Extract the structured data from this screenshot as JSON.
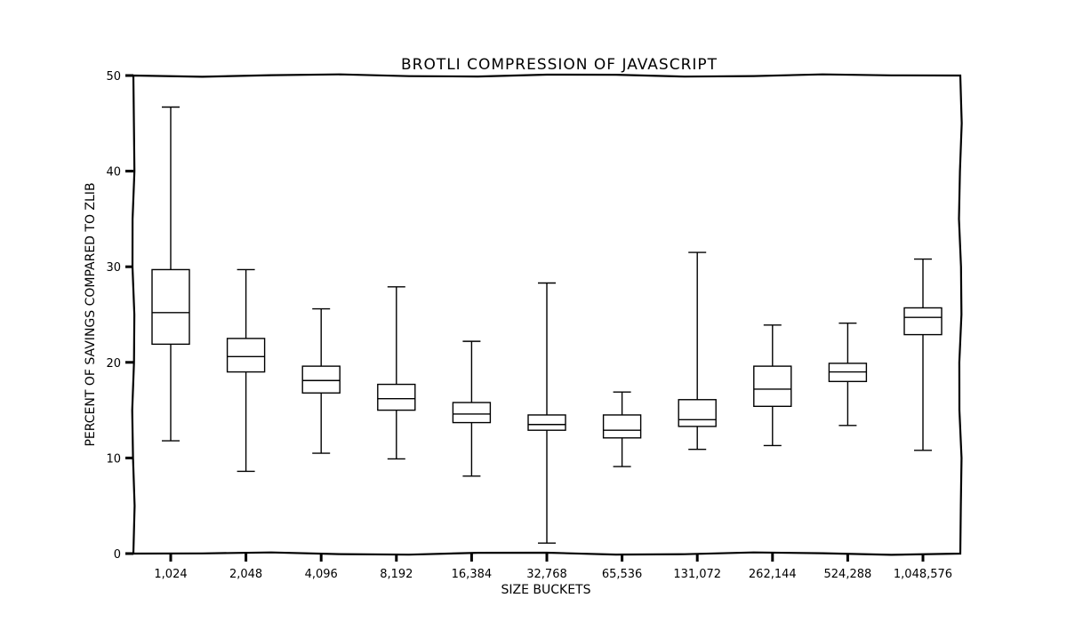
{
  "chart_data": {
    "type": "box",
    "title": "BROTLI COMPRESSION OF JAVASCRIPT",
    "xlabel": "SIZE BUCKETS",
    "ylabel": "PERCENT OF SAVINGS COMPARED TO ZLIB",
    "ylim": [
      0,
      50
    ],
    "yticks": [
      0,
      10,
      20,
      30,
      40,
      50
    ],
    "grid": false,
    "categories": [
      "1,024",
      "2,048",
      "4,096",
      "8,192",
      "16,384",
      "32,768",
      "65,536",
      "131,072",
      "262,144",
      "524,288",
      "1,048,576"
    ],
    "boxes": [
      {
        "whisker_low": 11.8,
        "q1": 21.9,
        "median": 25.2,
        "q3": 29.7,
        "whisker_high": 46.7
      },
      {
        "whisker_low": 8.6,
        "q1": 19.0,
        "median": 20.6,
        "q3": 22.5,
        "whisker_high": 29.7
      },
      {
        "whisker_low": 10.5,
        "q1": 16.8,
        "median": 18.1,
        "q3": 19.6,
        "whisker_high": 25.6
      },
      {
        "whisker_low": 9.9,
        "q1": 15.0,
        "median": 16.2,
        "q3": 17.7,
        "whisker_high": 27.9
      },
      {
        "whisker_low": 8.1,
        "q1": 13.7,
        "median": 14.6,
        "q3": 15.8,
        "whisker_high": 22.2
      },
      {
        "whisker_low": 1.1,
        "q1": 12.9,
        "median": 13.5,
        "q3": 14.5,
        "whisker_high": 28.3
      },
      {
        "whisker_low": 9.1,
        "q1": 12.1,
        "median": 12.9,
        "q3": 14.5,
        "whisker_high": 16.9
      },
      {
        "whisker_low": 10.9,
        "q1": 13.3,
        "median": 14.0,
        "q3": 16.1,
        "whisker_high": 31.5
      },
      {
        "whisker_low": 11.3,
        "q1": 15.4,
        "median": 17.2,
        "q3": 19.6,
        "whisker_high": 23.9
      },
      {
        "whisker_low": 13.4,
        "q1": 18.0,
        "median": 19.0,
        "q3": 19.9,
        "whisker_high": 24.1
      },
      {
        "whisker_low": 10.8,
        "q1": 22.9,
        "median": 24.7,
        "q3": 25.7,
        "whisker_high": 30.8
      }
    ]
  }
}
